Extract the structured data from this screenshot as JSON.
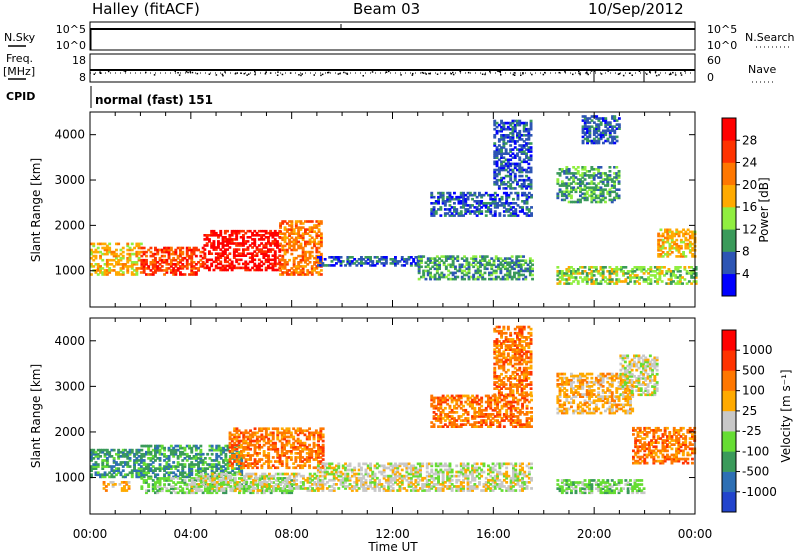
{
  "header": {
    "station": "Halley (fitACF)",
    "beam": "Beam 03",
    "date": "10/Sep/2012"
  },
  "strips": {
    "nsky_label": "N.Sky",
    "nsearch_label": "N.Search",
    "freq_label_1": "Freq.",
    "freq_label_2": "[MHz]",
    "nave_label": "Nave",
    "cpid_label": "CPID",
    "cpid_value": "normal (fast) 151",
    "nsky_ticks": [
      "10^5",
      "10^0"
    ],
    "nsearch_ticks": [
      "10^5",
      "10^0"
    ],
    "freq_ticks": [
      "18",
      "8"
    ],
    "nave_ticks": [
      "60",
      "0"
    ]
  },
  "colors": {
    "power": [
      "#0000ff",
      "#2d55b4",
      "#3a9a5a",
      "#90ee40",
      "#ffaa00",
      "#ff7700",
      "#ff3300",
      "#ff0000"
    ],
    "velocity": [
      "#2244cc",
      "#2d6fb4",
      "#3a9a5a",
      "#66dd33",
      "#c8c8c8",
      "#ffaa00",
      "#ff7700",
      "#ff3300",
      "#ff0000"
    ]
  },
  "chart_data": [
    {
      "type": "heatmap",
      "name": "power",
      "xlabel": "",
      "ylabel": "Slant Range [km]",
      "ylim": [
        200,
        4500
      ],
      "y_ticks": [
        1000,
        2000,
        3000,
        4000
      ],
      "colorbar_label": "Power [dB]",
      "colorbar_ticks": [
        "28",
        "24",
        "20",
        "16",
        "12",
        "8",
        "4"
      ],
      "regions": [
        {
          "t0": 0.0,
          "t1": 2.0,
          "r0": 900,
          "r1": 1600,
          "level": 4
        },
        {
          "t0": 2.0,
          "t1": 4.5,
          "r0": 900,
          "r1": 1500,
          "level": 6
        },
        {
          "t0": 4.5,
          "t1": 7.5,
          "r0": 1000,
          "r1": 1900,
          "level": 7
        },
        {
          "t0": 7.5,
          "t1": 9.2,
          "r0": 900,
          "r1": 2100,
          "level": 5
        },
        {
          "t0": 9.0,
          "t1": 13.0,
          "r0": 1100,
          "r1": 1300,
          "level": 1
        },
        {
          "t0": 13.0,
          "t1": 17.5,
          "r0": 800,
          "r1": 1300,
          "level": 2
        },
        {
          "t0": 13.5,
          "t1": 17.5,
          "r0": 2200,
          "r1": 2700,
          "level": 1
        },
        {
          "t0": 16.0,
          "t1": 17.5,
          "r0": 2800,
          "r1": 4300,
          "level": 1
        },
        {
          "t0": 18.5,
          "t1": 21.0,
          "r0": 2500,
          "r1": 3300,
          "level": 2
        },
        {
          "t0": 18.5,
          "t1": 24.0,
          "r0": 700,
          "r1": 1100,
          "level": 3
        },
        {
          "t0": 22.5,
          "t1": 24.0,
          "r0": 1300,
          "r1": 1900,
          "level": 4
        },
        {
          "t0": 19.5,
          "t1": 21.0,
          "r0": 3800,
          "r1": 4400,
          "level": 1
        }
      ]
    },
    {
      "type": "heatmap",
      "name": "velocity",
      "xlabel": "Time UT",
      "ylabel": "Slant Range [km]",
      "ylim": [
        200,
        4500
      ],
      "y_ticks": [
        1000,
        2000,
        3000,
        4000
      ],
      "x_ticks": [
        "00:00",
        "04:00",
        "08:00",
        "12:00",
        "16:00",
        "20:00",
        "00:00"
      ],
      "colorbar_label": "Velocity [m s⁻¹]",
      "colorbar_ticks": [
        "1000",
        "500",
        "100",
        "25",
        "-25",
        "-100",
        "-500",
        "-1000"
      ],
      "regions": [
        {
          "t0": 0.0,
          "t1": 2.0,
          "r0": 1000,
          "r1": 1600,
          "level": 2
        },
        {
          "t0": 0.5,
          "t1": 1.5,
          "r0": 700,
          "r1": 900,
          "level": 5
        },
        {
          "t0": 2.0,
          "t1": 6.0,
          "r0": 1000,
          "r1": 1700,
          "level": 2
        },
        {
          "t0": 2.0,
          "t1": 8.0,
          "r0": 650,
          "r1": 1000,
          "level": 3
        },
        {
          "t0": 4.0,
          "t1": 9.0,
          "r0": 700,
          "r1": 1100,
          "level": 4
        },
        {
          "t0": 5.5,
          "t1": 9.2,
          "r0": 1200,
          "r1": 2100,
          "level": 6
        },
        {
          "t0": 9.0,
          "t1": 17.5,
          "r0": 700,
          "r1": 1300,
          "level": 4
        },
        {
          "t0": 13.5,
          "t1": 17.5,
          "r0": 2100,
          "r1": 2800,
          "level": 6
        },
        {
          "t0": 16.0,
          "t1": 17.5,
          "r0": 2800,
          "r1": 4300,
          "level": 6
        },
        {
          "t0": 18.5,
          "t1": 22.0,
          "r0": 650,
          "r1": 950,
          "level": 3
        },
        {
          "t0": 21.5,
          "t1": 24.0,
          "r0": 1300,
          "r1": 2100,
          "level": 6
        },
        {
          "t0": 18.5,
          "t1": 21.5,
          "r0": 2400,
          "r1": 3300,
          "level": 5
        },
        {
          "t0": 21.0,
          "t1": 22.5,
          "r0": 2800,
          "r1": 3700,
          "level": 4
        }
      ]
    }
  ]
}
